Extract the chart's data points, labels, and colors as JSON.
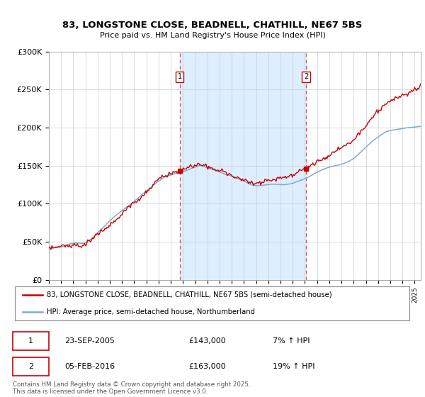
{
  "title": "83, LONGSTONE CLOSE, BEADNELL, CHATHILL, NE67 5BS",
  "subtitle": "Price paid vs. HM Land Registry's House Price Index (HPI)",
  "legend_line1": "83, LONGSTONE CLOSE, BEADNELL, CHATHILL, NE67 5BS (semi-detached house)",
  "legend_line2": "HPI: Average price, semi-detached house, Northumberland",
  "annotation1_date": "23-SEP-2005",
  "annotation1_value": "£143,000",
  "annotation1_pct": "7% ↑ HPI",
  "annotation2_date": "05-FEB-2016",
  "annotation2_value": "£163,000",
  "annotation2_pct": "19% ↑ HPI",
  "footer": "Contains HM Land Registry data © Crown copyright and database right 2025.\nThis data is licensed under the Open Government Licence v3.0.",
  "red_color": "#cc0000",
  "blue_color": "#7aadce",
  "shade_color": "#ddeeff",
  "vline_color": "#e05050",
  "ylim": [
    0,
    300000
  ],
  "yticks": [
    0,
    50000,
    100000,
    150000,
    200000,
    250000,
    300000
  ],
  "ytick_labels": [
    "£0",
    "£50K",
    "£100K",
    "£150K",
    "£200K",
    "£250K",
    "£300K"
  ],
  "sale1_year": 2005.73,
  "sale2_year": 2016.09
}
